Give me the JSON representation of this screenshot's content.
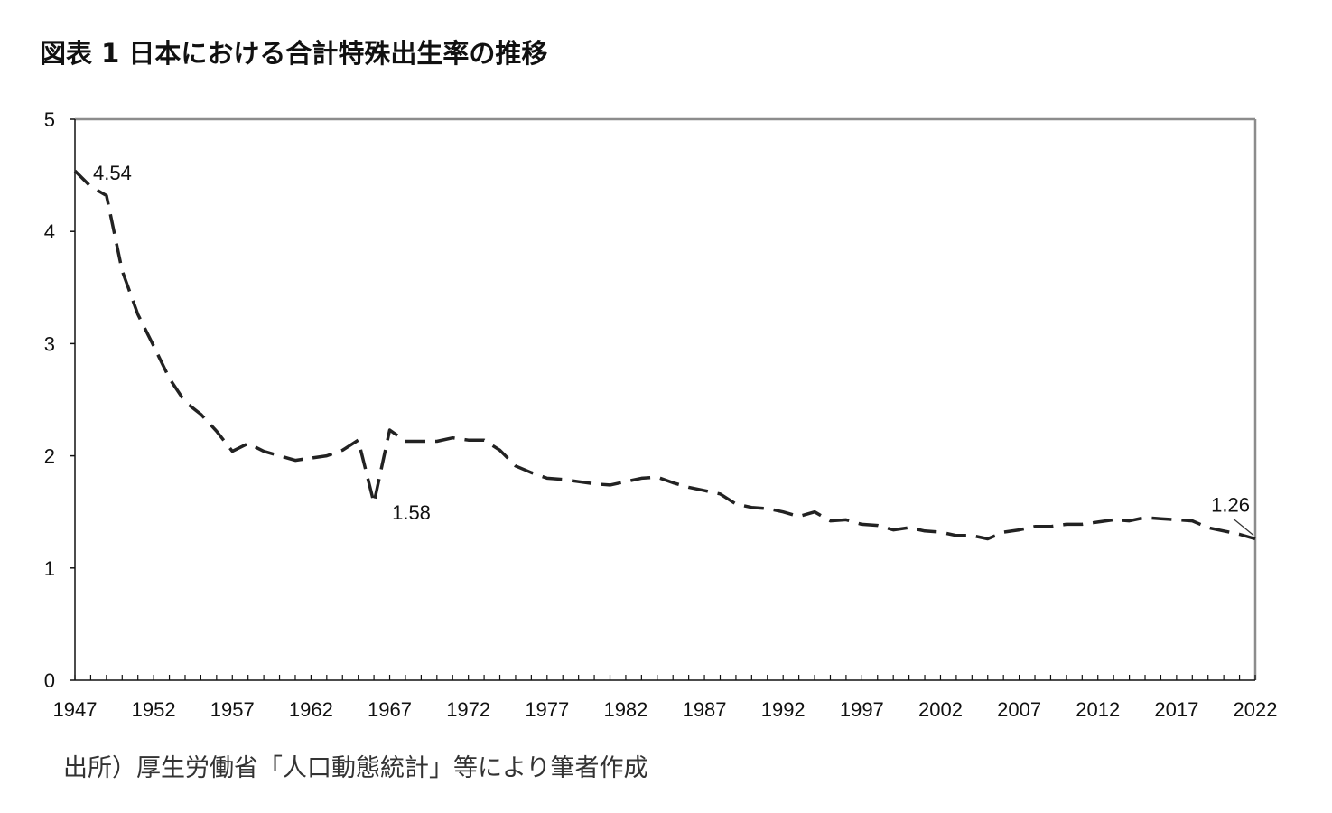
{
  "chart_data": {
    "type": "line",
    "title": "図表 1 日本における合計特殊出生率の推移",
    "xlabel": "",
    "ylabel": "",
    "xlim": [
      1947,
      2022
    ],
    "ylim": [
      0,
      5
    ],
    "yticks": [
      0,
      1,
      2,
      3,
      4,
      5
    ],
    "xtick_labels": [
      "1947",
      "1952",
      "1957",
      "1962",
      "1967",
      "1972",
      "1977",
      "1982",
      "1987",
      "1992",
      "1997",
      "2002",
      "2007",
      "2012",
      "2017",
      "2022"
    ],
    "grid": false,
    "legend": "none",
    "line_style": "dashed",
    "line_color": "#222222",
    "series": [
      {
        "x": [
          1947,
          1948,
          1949,
          1950,
          1951,
          1952,
          1953,
          1954,
          1955,
          1956,
          1957,
          1958,
          1959,
          1960,
          1961,
          1962,
          1963,
          1964,
          1965,
          1966,
          1967,
          1968,
          1969,
          1970,
          1971,
          1972,
          1973,
          1974,
          1975,
          1976,
          1977,
          1978,
          1979,
          1980,
          1981,
          1982,
          1983,
          1984,
          1985,
          1986,
          1987,
          1988,
          1989,
          1990,
          1991,
          1992,
          1993,
          1994,
          1995,
          1996,
          1997,
          1998,
          1999,
          2000,
          2001,
          2002,
          2003,
          2004,
          2005,
          2006,
          2007,
          2008,
          2009,
          2010,
          2011,
          2012,
          2013,
          2014,
          2015,
          2016,
          2017,
          2018,
          2019,
          2020,
          2021,
          2022
        ],
        "values": [
          4.54,
          4.4,
          4.32,
          3.65,
          3.26,
          2.98,
          2.69,
          2.48,
          2.37,
          2.22,
          2.04,
          2.11,
          2.04,
          2.0,
          1.96,
          1.98,
          2.0,
          2.05,
          2.14,
          1.58,
          2.23,
          2.13,
          2.13,
          2.13,
          2.16,
          2.14,
          2.14,
          2.05,
          1.91,
          1.85,
          1.8,
          1.79,
          1.77,
          1.75,
          1.74,
          1.77,
          1.8,
          1.81,
          1.76,
          1.72,
          1.69,
          1.66,
          1.57,
          1.54,
          1.53,
          1.5,
          1.46,
          1.5,
          1.42,
          1.43,
          1.39,
          1.38,
          1.34,
          1.36,
          1.33,
          1.32,
          1.29,
          1.29,
          1.26,
          1.32,
          1.34,
          1.37,
          1.37,
          1.39,
          1.39,
          1.41,
          1.43,
          1.42,
          1.45,
          1.44,
          1.43,
          1.42,
          1.36,
          1.33,
          1.3,
          1.26
        ]
      }
    ],
    "annotations": [
      {
        "text": "4.54",
        "x": 1947,
        "y": 4.54
      },
      {
        "text": "1.58",
        "x": 1966,
        "y": 1.58
      },
      {
        "text": "1.26",
        "x": 2022,
        "y": 1.26
      }
    ]
  },
  "source_note": "出所）厚生労働省「人口動態統計」等により筆者作成"
}
